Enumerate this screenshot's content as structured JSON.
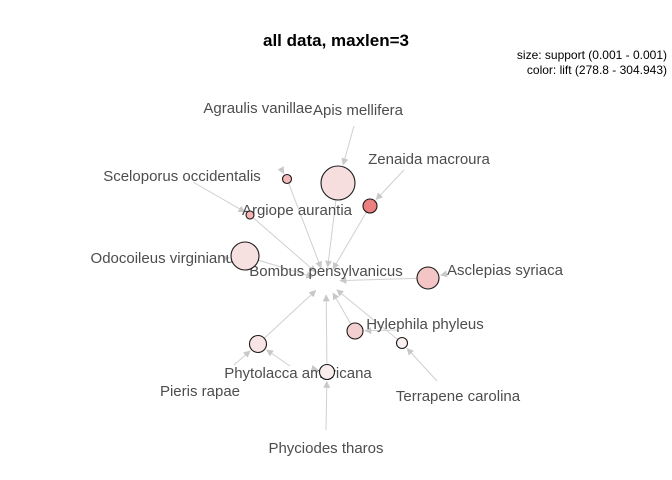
{
  "chart_data": {
    "type": "network",
    "title": "all data, maxlen=3",
    "legend": {
      "size_text": "size: support (0.001 - 0.001)",
      "color_text": "color: lift (278.8 - 304.943)"
    },
    "target": "Bombus pensylvanicus",
    "items": [
      "Agraulis vanillae",
      "Apis mellifera",
      "Zenaida macroura",
      "Sceloporus occidentalis",
      "Argiope aurantia",
      "Odocoileus virginianus",
      "Bombus pensylvanicus",
      "Asclepias syriaca",
      "Hylephila phyleus",
      "Phytolacca americana",
      "Pieris rapae",
      "Terrapene carolina",
      "Phyciodes tharos"
    ],
    "rules": [
      {
        "color": "#f4b8b8",
        "edges_in": [
          "Agraulis vanillae"
        ]
      },
      {
        "color": "#f6dede",
        "edges_in": [
          "Apis mellifera"
        ]
      },
      {
        "color": "#ec7f80",
        "edges_in": [
          "Zenaida macroura"
        ]
      },
      {
        "color": "#f3b3b3",
        "edges_in": [
          "Sceloporus occidentalis"
        ]
      },
      {
        "color": "#f6e0e0",
        "edges_in": [
          "Odocoileus virginianus"
        ]
      },
      {
        "color": "#f3c5c5",
        "edges_in": [
          "Asclepias syriaca"
        ]
      },
      {
        "color": "#f4cfcf",
        "edges_in": [
          "Hylephila phyleus"
        ]
      },
      {
        "color": "#fbf0f0",
        "edges_in": [
          "Terrapene carolina"
        ]
      },
      {
        "color": "#f8e4e4",
        "edges_in": [
          "Pieris rapae",
          "Phytolacca americana"
        ]
      },
      {
        "color": "#f8ecec",
        "edges_in": [
          "Phyciodes tharos",
          "Phytolacca americana"
        ]
      }
    ]
  }
}
